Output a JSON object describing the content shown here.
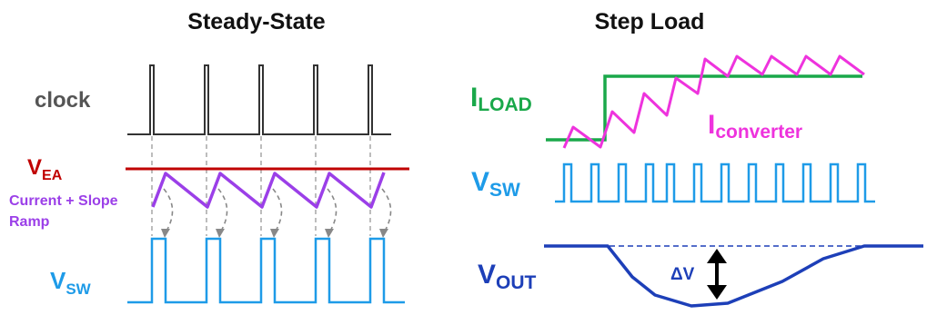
{
  "left_panel": {
    "title": "Steady-State",
    "clock_label": "clock",
    "vea_label": "V",
    "vea_sub": "EA",
    "ramp_label_line1": "Current + Slope",
    "ramp_label_line2": "Ramp",
    "vsw_label": "V",
    "vsw_sub": "SW"
  },
  "right_panel": {
    "title": "Step Load",
    "iload_label": "I",
    "iload_sub": "LOAD",
    "iconv_label": "I",
    "iconv_sub": "converter",
    "vsw_label": "V",
    "vsw_sub": "SW",
    "vout_label": "V",
    "vout_sub": "OUT",
    "delta_label": "ΔV"
  },
  "colors": {
    "title": "#111111",
    "clock": "#444444",
    "vea": "#c00000",
    "ramp": "#9b3fe8",
    "vsw": "#1e9be8",
    "iload": "#1aa84a",
    "iconv": "#ee33dd",
    "vout": "#1d3fb8",
    "guide": "#888888"
  }
}
